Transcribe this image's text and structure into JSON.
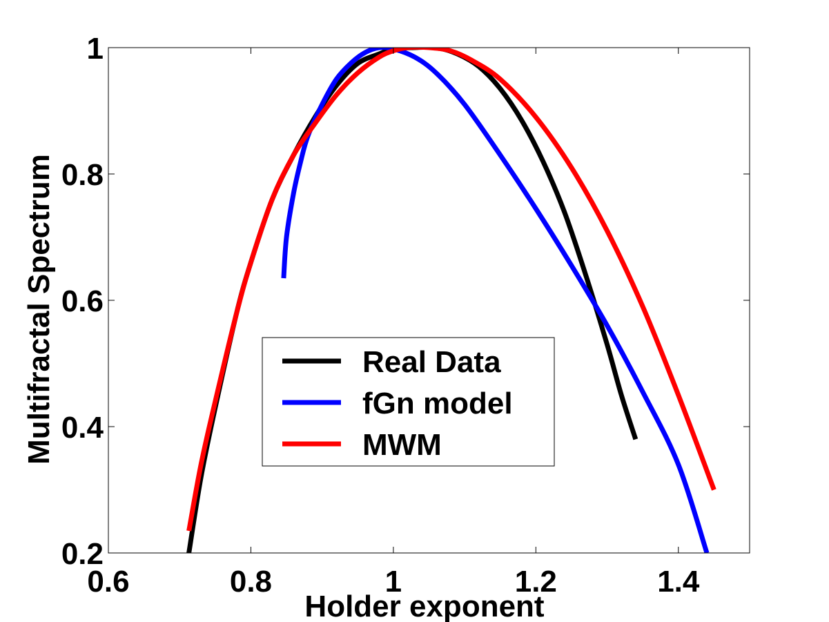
{
  "chart_data": {
    "type": "line",
    "title": "",
    "xlabel": "Holder exponent",
    "ylabel": "Multifractal Spectrum",
    "xlim": [
      0.6,
      1.5
    ],
    "ylim": [
      0.2,
      1.0
    ],
    "xticks": [
      "0.6",
      "0.8",
      "1",
      "1.2",
      "1.4"
    ],
    "yticks": [
      "0.2",
      "0.4",
      "0.6",
      "0.8",
      "1"
    ],
    "xtick_values": [
      0.6,
      0.8,
      1.0,
      1.2,
      1.4
    ],
    "ytick_values": [
      0.2,
      0.4,
      0.6,
      0.8,
      1.0
    ],
    "grid": false,
    "legend_position": "center",
    "series": [
      {
        "name": "Real Data",
        "color": "#000000",
        "x": [
          0.713,
          0.73,
          0.75,
          0.78,
          0.8,
          0.83,
          0.86,
          0.89,
          0.92,
          0.95,
          0.98,
          1.0,
          1.03,
          1.06,
          1.09,
          1.12,
          1.15,
          1.18,
          1.21,
          1.24,
          1.27,
          1.3,
          1.32,
          1.34
        ],
        "y": [
          0.2,
          0.32,
          0.43,
          0.58,
          0.66,
          0.76,
          0.83,
          0.89,
          0.94,
          0.975,
          0.99,
          0.998,
          1.0,
          1.0,
          0.99,
          0.97,
          0.935,
          0.885,
          0.82,
          0.74,
          0.64,
          0.53,
          0.45,
          0.38
        ]
      },
      {
        "name": "fGn model",
        "color": "#0000ff",
        "x": [
          0.846,
          0.85,
          0.86,
          0.87,
          0.88,
          0.9,
          0.92,
          0.94,
          0.96,
          0.98,
          1.0,
          1.03,
          1.06,
          1.1,
          1.15,
          1.2,
          1.25,
          1.3,
          1.35,
          1.4,
          1.44
        ],
        "y": [
          0.635,
          0.7,
          0.77,
          0.82,
          0.86,
          0.91,
          0.95,
          0.975,
          0.992,
          1.0,
          0.998,
          0.985,
          0.96,
          0.91,
          0.83,
          0.745,
          0.655,
          0.56,
          0.455,
          0.34,
          0.2
        ]
      },
      {
        "name": "MWM",
        "color": "#ff0000",
        "x": [
          0.713,
          0.73,
          0.75,
          0.78,
          0.8,
          0.83,
          0.86,
          0.89,
          0.92,
          0.95,
          0.98,
          1.0,
          1.02,
          1.05,
          1.08,
          1.11,
          1.15,
          1.2,
          1.25,
          1.3,
          1.35,
          1.4,
          1.45
        ],
        "y": [
          0.235,
          0.34,
          0.44,
          0.58,
          0.66,
          0.76,
          0.83,
          0.88,
          0.925,
          0.96,
          0.985,
          0.995,
          1.0,
          1.0,
          0.995,
          0.98,
          0.95,
          0.89,
          0.81,
          0.71,
          0.59,
          0.45,
          0.3
        ]
      }
    ]
  }
}
